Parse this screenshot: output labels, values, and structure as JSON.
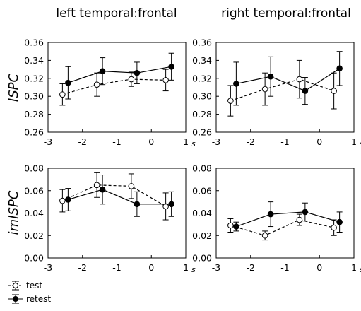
{
  "figure": {
    "column_titles": [
      "left temporal:frontal",
      "right temporal:frontal"
    ],
    "row_labels": [
      "ISPC",
      "imISPC"
    ],
    "x_unit": "s",
    "legend": [
      {
        "label": "test",
        "marker": "open-circle",
        "line": "dashed"
      },
      {
        "label": "retest",
        "marker": "filled-circle",
        "line": "solid"
      }
    ]
  },
  "chart_data": [
    {
      "type": "line",
      "panel": "top-left",
      "title": "left temporal:frontal",
      "ylabel": "ISPC",
      "xlim": [
        -3,
        1
      ],
      "ylim": [
        0.26,
        0.36
      ],
      "x_ticks": [
        "-3",
        "-2",
        "-1",
        "0",
        "1"
      ],
      "y_ticks": [
        "0.26",
        "0.28",
        "0.30",
        "0.32",
        "0.34",
        "0.36"
      ],
      "series": [
        {
          "name": "test",
          "style": "dashed-open",
          "x": [
            -2.5,
            -1.5,
            -0.5,
            0.5
          ],
          "y": [
            0.302,
            0.313,
            0.319,
            0.318
          ],
          "err": [
            0.012,
            0.013,
            0.008,
            0.012
          ]
        },
        {
          "name": "retest",
          "style": "solid-filled",
          "x": [
            -2.5,
            -1.5,
            -0.5,
            0.5
          ],
          "y": [
            0.315,
            0.328,
            0.326,
            0.333
          ],
          "err": [
            0.018,
            0.015,
            0.012,
            0.015
          ]
        }
      ]
    },
    {
      "type": "line",
      "panel": "top-right",
      "title": "right temporal:frontal",
      "ylabel": "ISPC",
      "xlim": [
        -3,
        1
      ],
      "ylim": [
        0.26,
        0.36
      ],
      "x_ticks": [
        "-3",
        "-2",
        "-1",
        "0",
        "1"
      ],
      "y_ticks": [
        "0.26",
        "0.28",
        "0.30",
        "0.32",
        "0.34",
        "0.36"
      ],
      "series": [
        {
          "name": "test",
          "style": "dashed-open",
          "x": [
            -2.5,
            -1.5,
            -0.5,
            0.5
          ],
          "y": [
            0.295,
            0.308,
            0.319,
            0.306
          ],
          "err": [
            0.017,
            0.018,
            0.021,
            0.02
          ]
        },
        {
          "name": "retest",
          "style": "solid-filled",
          "x": [
            -2.5,
            -1.5,
            -0.5,
            0.5
          ],
          "y": [
            0.314,
            0.322,
            0.306,
            0.331
          ],
          "err": [
            0.024,
            0.022,
            0.015,
            0.019
          ]
        }
      ]
    },
    {
      "type": "line",
      "panel": "bottom-left",
      "title": "",
      "ylabel": "imISPC",
      "xlim": [
        -3,
        1
      ],
      "ylim": [
        0.0,
        0.08
      ],
      "x_ticks": [
        "-3",
        "-2",
        "-1",
        "0",
        "1"
      ],
      "y_ticks": [
        "0.00",
        "0.02",
        "0.04",
        "0.06",
        "0.08"
      ],
      "series": [
        {
          "name": "test",
          "style": "dashed-open",
          "x": [
            -2.5,
            -1.5,
            -0.5,
            0.5
          ],
          "y": [
            0.051,
            0.065,
            0.064,
            0.046
          ],
          "err": [
            0.01,
            0.011,
            0.011,
            0.012
          ]
        },
        {
          "name": "retest",
          "style": "solid-filled",
          "x": [
            -2.5,
            -1.5,
            -0.5,
            0.5
          ],
          "y": [
            0.052,
            0.061,
            0.048,
            0.048
          ],
          "err": [
            0.01,
            0.013,
            0.011,
            0.011
          ]
        }
      ]
    },
    {
      "type": "line",
      "panel": "bottom-right",
      "title": "",
      "ylabel": "imISPC",
      "xlim": [
        -3,
        1
      ],
      "ylim": [
        0.0,
        0.08
      ],
      "x_ticks": [
        "-3",
        "-2",
        "-1",
        "0",
        "1"
      ],
      "y_ticks": [
        "0.00",
        "0.02",
        "0.04",
        "0.06",
        "0.08"
      ],
      "series": [
        {
          "name": "test",
          "style": "dashed-open",
          "x": [
            -2.5,
            -1.5,
            -0.5,
            0.5
          ],
          "y": [
            0.029,
            0.02,
            0.034,
            0.027
          ],
          "err": [
            0.006,
            0.004,
            0.005,
            0.007
          ]
        },
        {
          "name": "retest",
          "style": "solid-filled",
          "x": [
            -2.5,
            -1.5,
            -0.5,
            0.5
          ],
          "y": [
            0.028,
            0.039,
            0.041,
            0.032
          ],
          "err": [
            0.004,
            0.011,
            0.008,
            0.009
          ]
        }
      ]
    }
  ]
}
